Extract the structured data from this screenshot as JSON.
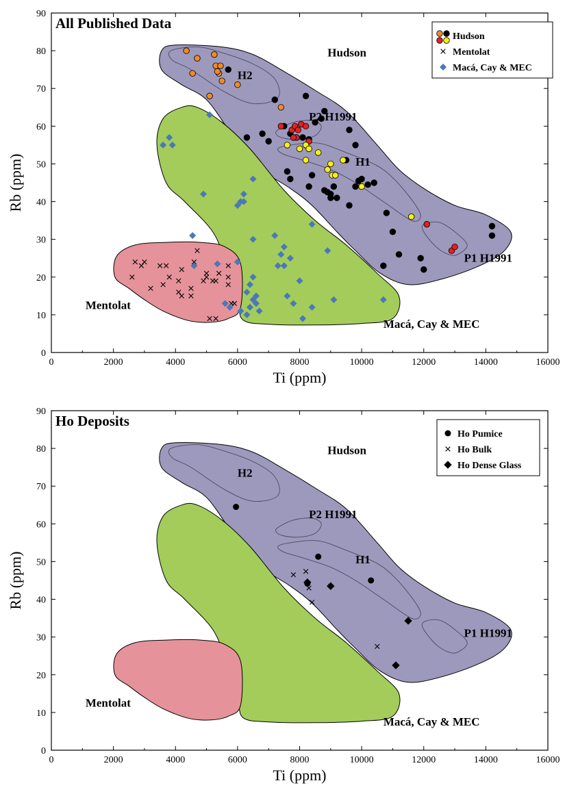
{
  "colors": {
    "hudson_field": "#9c99bc",
    "mac_field": "#a3cc5b",
    "mentolat_field": "#e5929a",
    "hudson_orange": "#f08a2a",
    "hudson_black": "#000000",
    "hudson_red": "#e02222",
    "hudson_yellow": "#f5f015",
    "mac_blue": "#4a78b8"
  },
  "chart_data": [
    {
      "type": "scatter",
      "panel": "top",
      "title": "All Published Data",
      "xlabel": "Ti (ppm)",
      "ylabel": "Rb (ppm)",
      "xlim": [
        0,
        16000
      ],
      "ylim": [
        0,
        90
      ],
      "x_ticks": [
        "0",
        "2000",
        "4000",
        "6000",
        "8000",
        "10000",
        "12000",
        "14000",
        "16000"
      ],
      "y_ticks": [
        "0",
        "10",
        "20",
        "30",
        "40",
        "50",
        "60",
        "70",
        "80",
        "90"
      ],
      "legend": {
        "position": "top-right",
        "entries": [
          "Hudson",
          "Mentolat",
          "Macá, Cay & MEC"
        ]
      },
      "field_labels": {
        "hudson": "Hudson",
        "h2": "H2",
        "p2": "P2 H1991",
        "h1": "H1",
        "p1": "P1 H1991",
        "mentolat": "Mentolat",
        "mac": "Macá, Cay & MEC"
      },
      "series": [
        {
          "name": "Hudson",
          "group": "orange",
          "points": [
            [
              4350,
              80
            ],
            [
              4550,
              74
            ],
            [
              4700,
              78
            ],
            [
              5100,
              68
            ],
            [
              5250,
              79
            ],
            [
              5300,
              76
            ],
            [
              5400,
              74
            ],
            [
              5450,
              76
            ],
            [
              5500,
              72
            ],
            [
              5350,
              74.5
            ],
            [
              6000,
              71
            ],
            [
              7400,
              65
            ]
          ]
        },
        {
          "name": "Hudson",
          "group": "black",
          "points": [
            [
              5700,
              75
            ],
            [
              7200,
              67
            ],
            [
              8200,
              68
            ],
            [
              6300,
              57
            ],
            [
              6800,
              58
            ],
            [
              7000,
              56
            ],
            [
              7500,
              60
            ],
            [
              7700,
              58
            ],
            [
              7900,
              57
            ],
            [
              8100,
              57
            ],
            [
              8300,
              56.5
            ],
            [
              8500,
              61
            ],
            [
              8700,
              62
            ],
            [
              8800,
              64
            ],
            [
              9600,
              59
            ],
            [
              9800,
              55
            ],
            [
              9500,
              51
            ],
            [
              9100,
              44
            ],
            [
              7600,
              48
            ],
            [
              7700,
              46
            ],
            [
              8300,
              44
            ],
            [
              8400,
              47
            ],
            [
              8800,
              43
            ],
            [
              8900,
              42.5
            ],
            [
              9000,
              42
            ],
            [
              9200,
              41
            ],
            [
              9600,
              39
            ],
            [
              9800,
              44
            ],
            [
              9900,
              45.5
            ],
            [
              10000,
              46
            ],
            [
              10200,
              44.5
            ],
            [
              10400,
              45
            ],
            [
              10800,
              37
            ],
            [
              11200,
              26
            ],
            [
              11000,
              32
            ],
            [
              10700,
              23
            ],
            [
              11900,
              25
            ],
            [
              12000,
              22
            ],
            [
              14200,
              33.5
            ],
            [
              14200,
              31
            ],
            [
              8200,
              55
            ],
            [
              9000,
              41
            ]
          ]
        },
        {
          "name": "Hudson",
          "group": "red",
          "points": [
            [
              7400,
              60
            ],
            [
              7750,
              59
            ],
            [
              7850,
              60
            ],
            [
              7950,
              59
            ],
            [
              8050,
              60.5
            ],
            [
              8200,
              60
            ],
            [
              8300,
              56
            ],
            [
              7900,
              57
            ],
            [
              12100,
              34
            ],
            [
              12900,
              27
            ],
            [
              13000,
              28
            ],
            [
              7800,
              57
            ]
          ]
        },
        {
          "name": "Hudson",
          "group": "yellow",
          "points": [
            [
              7600,
              55
            ],
            [
              8000,
              54
            ],
            [
              8200,
              55
            ],
            [
              8300,
              54
            ],
            [
              8600,
              53
            ],
            [
              8200,
              51
            ],
            [
              8900,
              48.5
            ],
            [
              9000,
              50
            ],
            [
              9050,
              47
            ],
            [
              9150,
              47
            ],
            [
              9400,
              51
            ],
            [
              10000,
              44
            ],
            [
              11600,
              36
            ]
          ]
        },
        {
          "name": "Mentolat",
          "points": [
            [
              2600,
              20
            ],
            [
              2700,
              24
            ],
            [
              2900,
              23
            ],
            [
              3000,
              24
            ],
            [
              3200,
              17
            ],
            [
              3500,
              23
            ],
            [
              3600,
              18
            ],
            [
              3700,
              23
            ],
            [
              3800,
              20
            ],
            [
              4100,
              19
            ],
            [
              4200,
              15
            ],
            [
              4200,
              22
            ],
            [
              4500,
              17
            ],
            [
              4500,
              15
            ],
            [
              4700,
              27
            ],
            [
              4900,
              19
            ],
            [
              5000,
              20
            ],
            [
              5000,
              21
            ],
            [
              5100,
              9
            ],
            [
              5200,
              19
            ],
            [
              5300,
              19
            ],
            [
              5300,
              9
            ],
            [
              5400,
              21
            ],
            [
              5700,
              20
            ],
            [
              5700,
              23
            ],
            [
              5700,
              18
            ],
            [
              5800,
              13
            ],
            [
              5900,
              13
            ],
            [
              4600,
              24
            ],
            [
              4100,
              16
            ]
          ]
        },
        {
          "name": "Macá, Cay & MEC",
          "points": [
            [
              3600,
              55
            ],
            [
              3800,
              57
            ],
            [
              3900,
              55
            ],
            [
              4900,
              42
            ],
            [
              5100,
              63
            ],
            [
              4550,
              31
            ],
            [
              4600,
              23
            ],
            [
              5350,
              23.5
            ],
            [
              5600,
              13
            ],
            [
              5750,
              12
            ],
            [
              6000,
              39
            ],
            [
              6100,
              40
            ],
            [
              6200,
              40
            ],
            [
              6200,
              42
            ],
            [
              6300,
              16
            ],
            [
              6400,
              18
            ],
            [
              6500,
              46
            ],
            [
              6500,
              30
            ],
            [
              6600,
              13
            ],
            [
              6700,
              11
            ],
            [
              7200,
              31
            ],
            [
              7300,
              23
            ],
            [
              7400,
              26
            ],
            [
              7500,
              28
            ],
            [
              7500,
              23
            ],
            [
              7600,
              15
            ],
            [
              7700,
              25
            ],
            [
              7800,
              13
            ],
            [
              8000,
              19
            ],
            [
              8100,
              9
            ],
            [
              8400,
              34
            ],
            [
              8400,
              12
            ],
            [
              8900,
              27
            ],
            [
              9100,
              14
            ],
            [
              10700,
              14
            ],
            [
              6400,
              12
            ],
            [
              6500,
              14
            ],
            [
              6600,
              15
            ],
            [
              6000,
              24
            ],
            [
              6100,
              11
            ],
            [
              6300,
              10
            ],
            [
              6500,
              20
            ]
          ]
        }
      ]
    },
    {
      "type": "scatter",
      "panel": "bottom",
      "title": "Ho Deposits",
      "xlabel": "Ti (ppm)",
      "ylabel": "Rb (ppm)",
      "xlim": [
        0,
        16000
      ],
      "ylim": [
        0,
        90
      ],
      "x_ticks": [
        "0",
        "2000",
        "4000",
        "6000",
        "8000",
        "10000",
        "12000",
        "14000",
        "16000"
      ],
      "y_ticks": [
        "0",
        "10",
        "20",
        "30",
        "40",
        "50",
        "60",
        "70",
        "80",
        "90"
      ],
      "legend": {
        "position": "top-right",
        "entries": [
          "Ho Pumice",
          "Ho Bulk",
          "Ho Dense Glass"
        ]
      },
      "field_labels": {
        "hudson": "Hudson",
        "h2": "H2",
        "p2": "P2 H1991",
        "h1": "H1",
        "p1": "P1 H1991",
        "mentolat": "Mentolat",
        "mac": "Macá, Cay & MEC"
      },
      "series": [
        {
          "name": "Ho Pumice",
          "points": [
            [
              5950,
              64.5
            ],
            [
              8600,
              51.3
            ],
            [
              10300,
              45
            ],
            [
              8250,
              44.2
            ]
          ]
        },
        {
          "name": "Ho Bulk",
          "points": [
            [
              7800,
              46.5
            ],
            [
              8200,
              47.4
            ],
            [
              8300,
              43
            ],
            [
              8400,
              39.2
            ],
            [
              10500,
              27.5
            ]
          ]
        },
        {
          "name": "Ho Dense Glass",
          "points": [
            [
              8250,
              44.5
            ],
            [
              9000,
              43.5
            ],
            [
              11500,
              34.3
            ],
            [
              11100,
              22.5
            ]
          ]
        }
      ]
    }
  ]
}
